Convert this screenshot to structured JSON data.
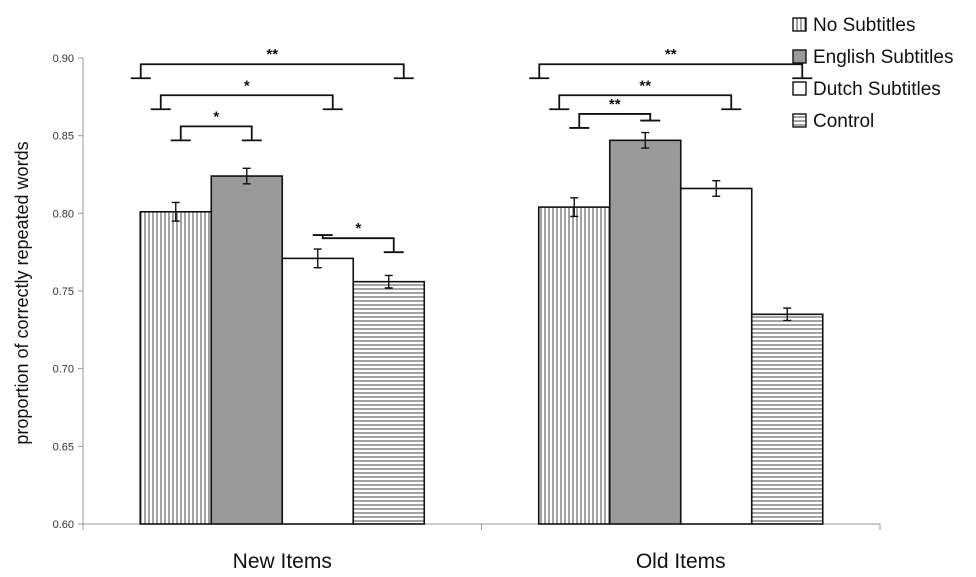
{
  "chart_data": {
    "type": "bar",
    "title": "",
    "ylabel": "proportion of correctly repeated words",
    "xlabel": "",
    "ylim": [
      0.6,
      0.9
    ],
    "yticks": [
      "0.60",
      "0.65",
      "0.70",
      "0.75",
      "0.80",
      "0.85",
      "0.90"
    ],
    "categories": [
      "New Items",
      "Old Items"
    ],
    "series": [
      {
        "name": "No Subtitles",
        "values": [
          0.801,
          0.804
        ],
        "errors": [
          0.006,
          0.006
        ],
        "fill": "vertical-stripes"
      },
      {
        "name": "English Subtitles",
        "values": [
          0.824,
          0.847
        ],
        "errors": [
          0.005,
          0.005
        ],
        "fill": "#9a9a9a"
      },
      {
        "name": "Dutch Subtitles",
        "values": [
          0.771,
          0.816
        ],
        "errors": [
          0.006,
          0.005
        ],
        "fill": "#ffffff"
      },
      {
        "name": "Control",
        "values": [
          0.756,
          0.735
        ],
        "errors": [
          0.004,
          0.004
        ],
        "fill": "horizontal-stripes"
      }
    ],
    "legend_position": "top-right",
    "grid": false,
    "significance": [
      {
        "category": 0,
        "from": 0,
        "to": 1,
        "label": "*",
        "y": 0.856
      },
      {
        "category": 0,
        "from": 0,
        "to": 2,
        "label": "*",
        "y": 0.876
      },
      {
        "category": 0,
        "from": 0,
        "to": 3,
        "label": "**",
        "y": 0.896
      },
      {
        "category": 0,
        "from": 2,
        "to": 3,
        "label": "*",
        "y": 0.784
      },
      {
        "category": 1,
        "from": 0,
        "to": 1,
        "label": "**",
        "y": 0.864
      },
      {
        "category": 1,
        "from": 0,
        "to": 2,
        "label": "**",
        "y": 0.876
      },
      {
        "category": 1,
        "from": 0,
        "to": 3,
        "label": "**",
        "y": 0.896
      }
    ]
  }
}
